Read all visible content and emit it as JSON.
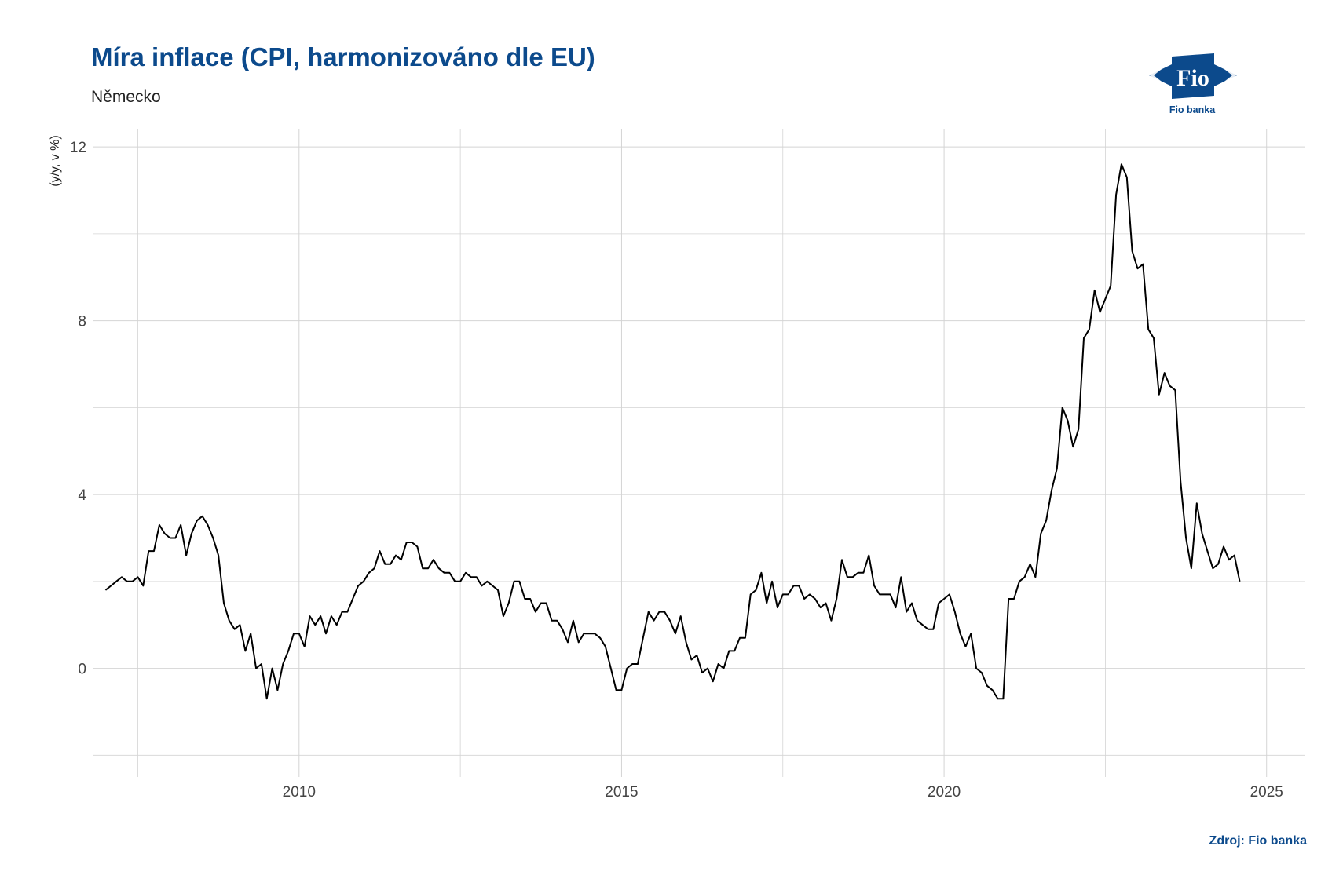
{
  "chart_data": {
    "type": "line",
    "title": "Míra inflace (CPI, harmonizováno dle EU)",
    "subtitle": "Německo",
    "ylabel": "(y/y, v %)",
    "source": "Zdroj: Fio banka",
    "xlim": [
      2006.8,
      2025.6
    ],
    "ylim": [
      -2.5,
      12.4
    ],
    "x_ticks": [
      2010,
      2015,
      2020,
      2025
    ],
    "y_ticks": [
      0,
      4,
      8,
      12
    ],
    "grid": true,
    "color": "#000000",
    "series": [
      {
        "start": "2007-01",
        "frequency": "monthly",
        "values": [
          1.8,
          1.9,
          2.0,
          2.1,
          2.0,
          2.0,
          2.1,
          1.9,
          2.7,
          2.7,
          3.3,
          3.1,
          3.0,
          3.0,
          3.3,
          2.6,
          3.1,
          3.4,
          3.5,
          3.3,
          3.0,
          2.6,
          1.5,
          1.1,
          0.9,
          1.0,
          0.4,
          0.8,
          0.0,
          0.1,
          -0.7,
          0.0,
          -0.5,
          0.1,
          0.4,
          0.8,
          0.8,
          0.5,
          1.2,
          1.0,
          1.2,
          0.8,
          1.2,
          1.0,
          1.3,
          1.3,
          1.6,
          1.9,
          2.0,
          2.2,
          2.3,
          2.7,
          2.4,
          2.4,
          2.6,
          2.5,
          2.9,
          2.9,
          2.8,
          2.3,
          2.3,
          2.5,
          2.3,
          2.2,
          2.2,
          2.0,
          2.0,
          2.2,
          2.1,
          2.1,
          1.9,
          2.0,
          1.9,
          1.8,
          1.2,
          1.5,
          2.0,
          2.0,
          1.6,
          1.6,
          1.3,
          1.5,
          1.5,
          1.1,
          1.1,
          0.9,
          0.6,
          1.1,
          0.6,
          0.8,
          0.8,
          0.8,
          0.7,
          0.5,
          0.0,
          -0.5,
          -0.5,
          0.0,
          0.1,
          0.1,
          0.7,
          1.3,
          1.1,
          1.3,
          1.3,
          1.1,
          0.8,
          1.2,
          0.6,
          0.2,
          0.3,
          -0.1,
          0.0,
          -0.3,
          0.1,
          0.0,
          0.4,
          0.4,
          0.7,
          0.7,
          1.7,
          1.8,
          2.2,
          1.5,
          2.0,
          1.4,
          1.7,
          1.7,
          1.9,
          1.9,
          1.6,
          1.7,
          1.6,
          1.4,
          1.5,
          1.1,
          1.6,
          2.5,
          2.1,
          2.1,
          2.2,
          2.2,
          2.6,
          1.9,
          1.7,
          1.7,
          1.7,
          1.4,
          2.1,
          1.3,
          1.5,
          1.1,
          1.0,
          0.9,
          0.9,
          1.5,
          1.6,
          1.7,
          1.3,
          0.8,
          0.5,
          0.8,
          0.0,
          -0.1,
          -0.4,
          -0.5,
          -0.7,
          -0.7,
          1.6,
          1.6,
          2.0,
          2.1,
          2.4,
          2.1,
          3.1,
          3.4,
          4.1,
          4.6,
          6.0,
          5.7,
          5.1,
          5.5,
          7.6,
          7.8,
          8.7,
          8.2,
          8.5,
          8.8,
          10.9,
          11.6,
          11.3,
          9.6,
          9.2,
          9.3,
          7.8,
          7.6,
          6.3,
          6.8,
          6.5,
          6.4,
          4.3,
          3.0,
          2.3,
          3.8,
          3.1,
          2.7,
          2.3,
          2.4,
          2.8,
          2.5,
          2.6,
          2.0
        ]
      }
    ]
  }
}
